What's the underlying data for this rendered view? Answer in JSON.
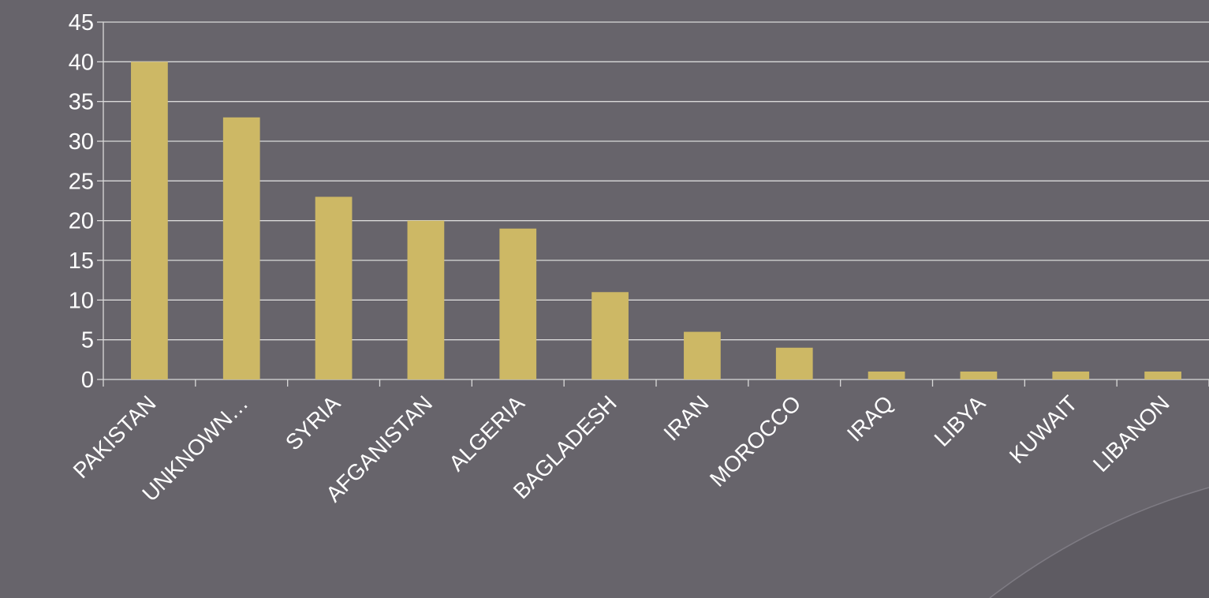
{
  "chart_data": {
    "type": "bar",
    "categories": [
      "PAKISTAN",
      "UNKNOWN…",
      "SYRIA",
      "AFGANISTAN",
      "ALGERIA",
      "BAGLADESH",
      "IRAN",
      "MOROCCO",
      "IRAQ",
      "LIBYA",
      "KUWAIT",
      "LIBANON"
    ],
    "values": [
      40,
      33,
      23,
      20,
      19,
      11,
      6,
      4,
      1,
      1,
      1,
      1
    ],
    "ylim": [
      0,
      45
    ],
    "yticks": [
      0,
      5,
      10,
      15,
      20,
      25,
      30,
      35,
      40,
      45
    ],
    "grid": true,
    "legend": "none",
    "title": "",
    "xlabel": "",
    "ylabel": ""
  },
  "colors": {
    "background": "#67646b",
    "bar": "#cdb865",
    "grid": "#d9d9d9",
    "text": "#ffffff"
  }
}
